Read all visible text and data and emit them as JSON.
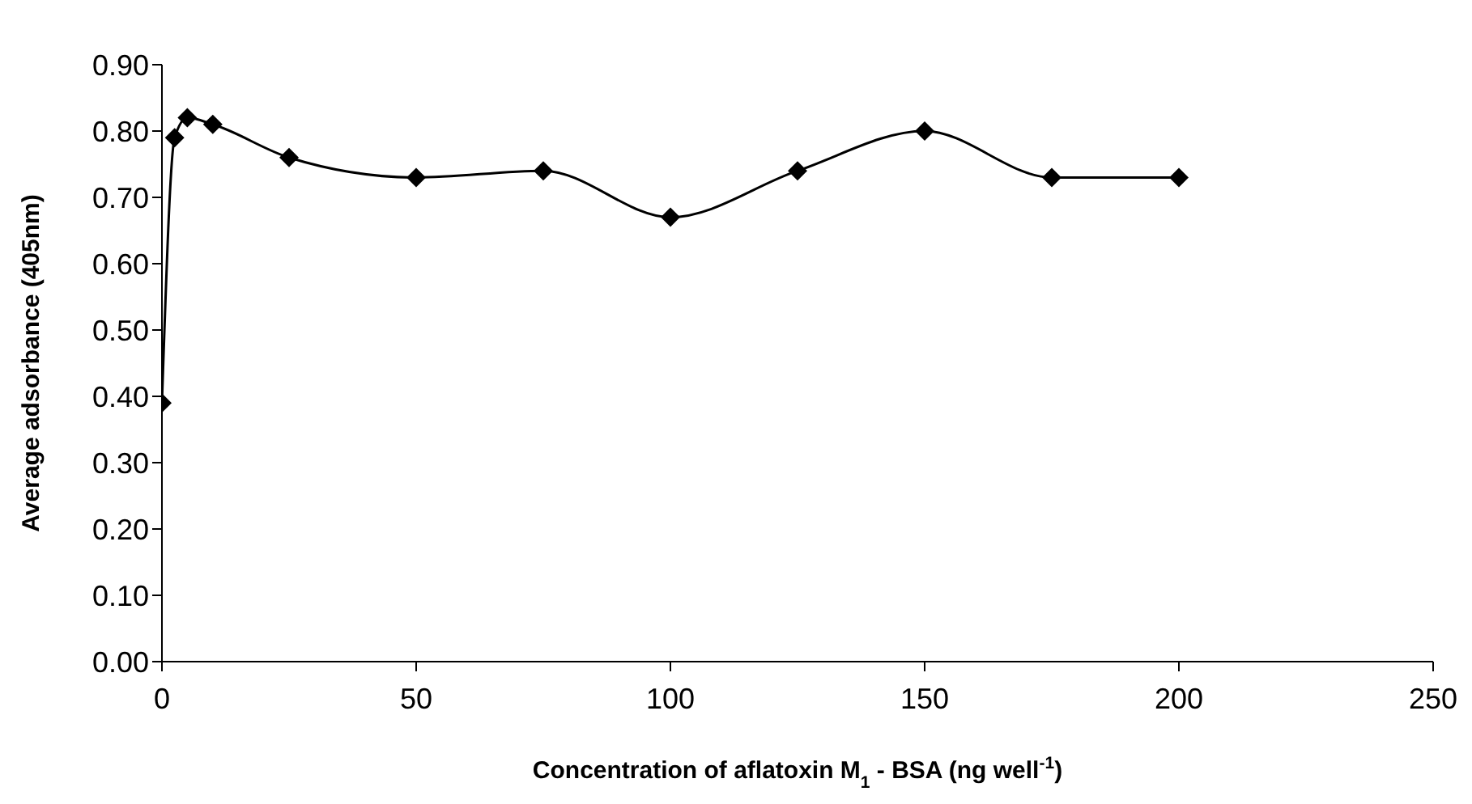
{
  "chart_data": {
    "type": "line",
    "xlabel": "Concentration of aflatoxin M$_{1}$ - BSA (ng well$^{-1}$)",
    "ylabel": "Average adsorbance (405nm)",
    "x": [
      0,
      2.5,
      5,
      10,
      25,
      50,
      75,
      100,
      125,
      150,
      175,
      200
    ],
    "series": [
      {
        "color": "#000000",
        "values": [
          0.39,
          0.79,
          0.82,
          0.81,
          0.76,
          0.73,
          0.74,
          0.67,
          0.74,
          0.8,
          0.73,
          0.73
        ]
      }
    ],
    "xlim": [
      0,
      250
    ],
    "xticks": [
      0,
      50,
      100,
      150,
      200,
      250
    ],
    "ylim": [
      0,
      0.9
    ],
    "yticks": [
      {
        "value": 0,
        "label": "0.00"
      },
      {
        "value": 0.1,
        "label": "0.10"
      },
      {
        "value": 0.2,
        "label": "0.20"
      },
      {
        "value": 0.3,
        "label": "0.30"
      },
      {
        "value": 0.4,
        "label": "0.40"
      },
      {
        "value": 0.5,
        "label": "0.50"
      },
      {
        "value": 0.6,
        "label": "0.60"
      },
      {
        "value": 0.7,
        "label": "0.70"
      },
      {
        "value": 0.8,
        "label": "0.80"
      },
      {
        "value": 0.9,
        "label": "0.90"
      }
    ],
    "grid": false,
    "legend": false,
    "marker": "diamond",
    "line_style": "solid"
  }
}
